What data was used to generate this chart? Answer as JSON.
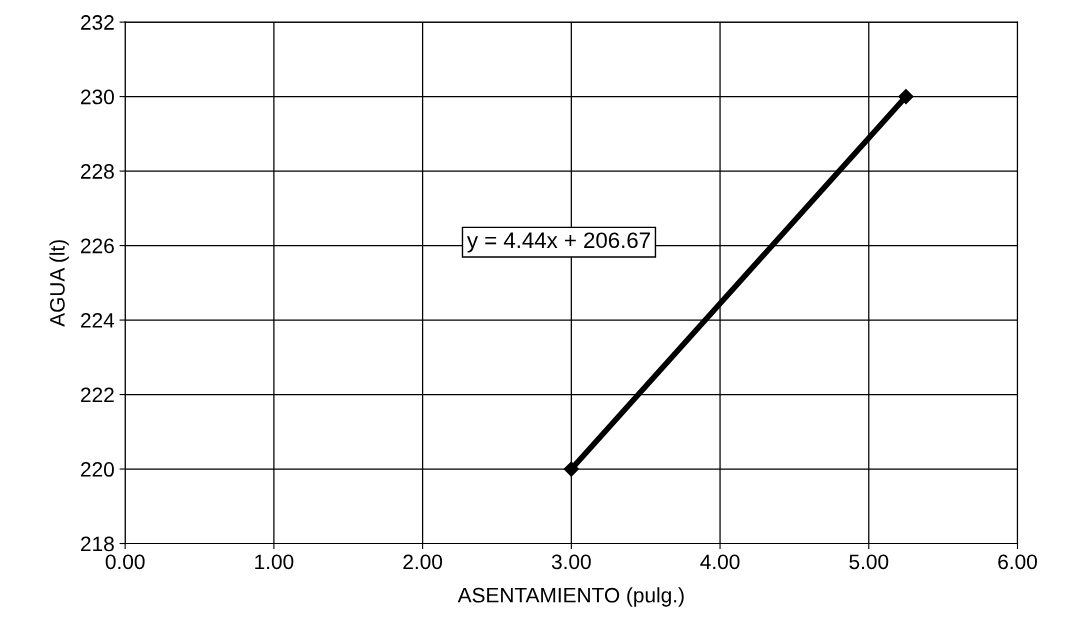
{
  "chart_data": {
    "type": "line",
    "xlabel": "ASENTAMIENTO (pulg.)",
    "ylabel": "AGUA (lt)",
    "series": [
      {
        "color": "#000000",
        "x": [
          3.0,
          5.25
        ],
        "values": [
          220,
          230
        ]
      }
    ],
    "marker": "diamond",
    "line_style": "solid",
    "grid": true,
    "annotations": [
      "y = 4.44x + 206.67"
    ],
    "xlim": [
      0,
      6
    ],
    "xticks": [
      {
        "value": 0,
        "label": "0.00"
      },
      {
        "value": 1,
        "label": "1.00"
      },
      {
        "value": 2,
        "label": "2.00"
      },
      {
        "value": 3,
        "label": "3.00"
      },
      {
        "value": 4,
        "label": "4.00"
      },
      {
        "value": 5,
        "label": "5.00"
      },
      {
        "value": 6,
        "label": "6.00"
      }
    ],
    "ylim": [
      218,
      232
    ],
    "yticks": [
      218,
      220,
      222,
      224,
      226,
      228,
      230,
      232
    ]
  }
}
